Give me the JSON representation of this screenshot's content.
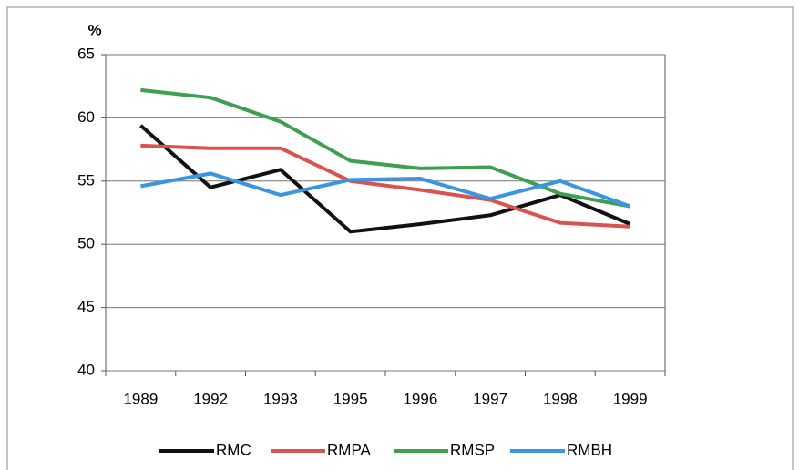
{
  "chart_data": {
    "type": "line",
    "y_label": "%",
    "categories": [
      "1989",
      "1992",
      "1993",
      "1995",
      "1996",
      "1997",
      "1998",
      "1999"
    ],
    "series": [
      {
        "name": "RMC",
        "color": "#111111",
        "values": [
          59.4,
          54.5,
          55.9,
          51.0,
          51.6,
          52.3,
          53.9,
          51.6
        ]
      },
      {
        "name": "RMPA",
        "color": "#d9534f",
        "values": [
          57.8,
          57.6,
          57.6,
          55.0,
          54.3,
          53.5,
          51.7,
          51.4
        ]
      },
      {
        "name": "RMSP",
        "color": "#3f9e50",
        "values": [
          62.2,
          61.6,
          59.7,
          56.6,
          56.0,
          56.1,
          54.0,
          53.0
        ]
      },
      {
        "name": "RMBH",
        "color": "#3a96e0",
        "values": [
          54.6,
          55.6,
          53.9,
          55.1,
          55.2,
          53.6,
          55.0,
          53.0
        ]
      }
    ],
    "ylim": [
      40,
      65
    ],
    "yticks": [
      40,
      45,
      50,
      55,
      60,
      65
    ],
    "grid": true,
    "legend": "bottom"
  }
}
